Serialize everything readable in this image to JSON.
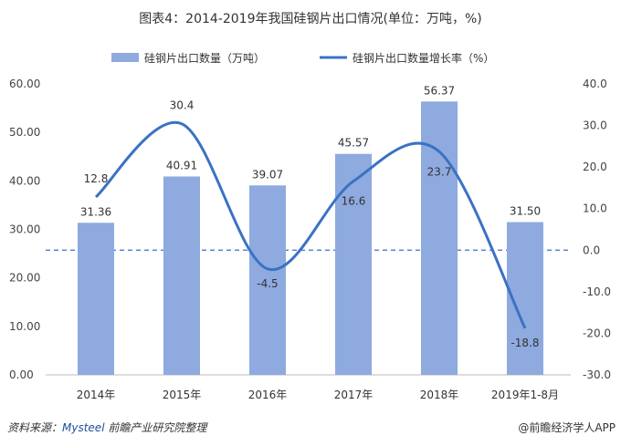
{
  "title": "图表4：2014-2019年我国硅钢片出口情况(单位：万吨，%)",
  "source": {
    "prefix": "资料来源：",
    "mysteel": "Mysteel",
    "rest": " 前瞻产业研究院整理"
  },
  "brand": "@前瞻经济学人APP",
  "chart_data": {
    "type": "bar+line",
    "categories": [
      "2014年",
      "2015年",
      "2016年",
      "2017年",
      "2018年",
      "2019年1-8月"
    ],
    "series": [
      {
        "name": "硅钢片出口数量（万吨）",
        "type": "bar",
        "axis": "left",
        "values": [
          31.36,
          40.91,
          39.07,
          45.57,
          56.37,
          31.5
        ],
        "labels": [
          "31.36",
          "40.91",
          "39.07",
          "45.57",
          "56.37",
          "31.50"
        ],
        "color": "#8eaadf"
      },
      {
        "name": "硅钢片出口数量增长率（%）",
        "type": "line",
        "axis": "right",
        "values": [
          12.8,
          30.4,
          -4.5,
          16.6,
          23.7,
          -18.8
        ],
        "labels": [
          "12.8",
          "30.4",
          "-4.5",
          "16.6",
          "23.7",
          "-18.8"
        ],
        "color": "#3a72c4"
      }
    ],
    "left_axis": {
      "ylim": [
        0,
        60
      ],
      "ticks": [
        "0.00",
        "10.00",
        "20.00",
        "30.00",
        "40.00",
        "50.00",
        "60.00"
      ]
    },
    "right_axis": {
      "ylim": [
        -30,
        40
      ],
      "ticks": [
        "-30.0",
        "-20.0",
        "-10.0",
        "0.0",
        "10.0",
        "20.0",
        "30.0",
        "40.0"
      ]
    },
    "reference_line": 0,
    "legend": "top",
    "grid": false
  }
}
